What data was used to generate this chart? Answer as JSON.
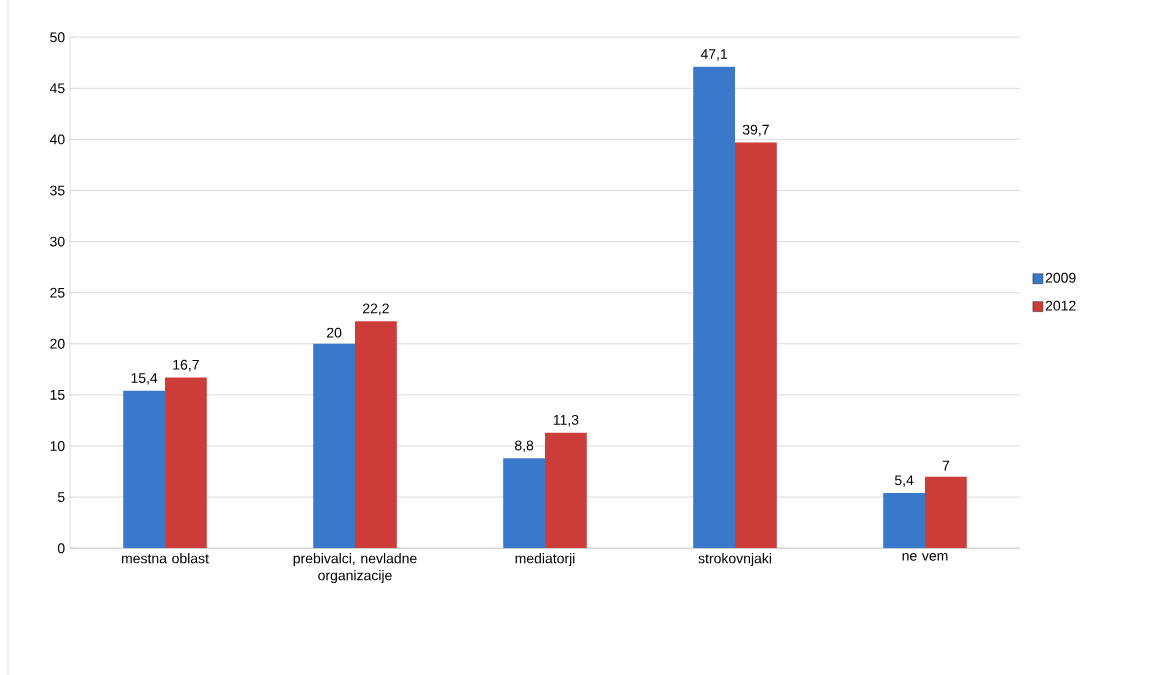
{
  "chart_data": {
    "type": "bar",
    "categories": [
      "mestna oblast",
      "prebivalci, nevladne organizacije",
      "mediatorji",
      "strokovnjaki",
      "ne vem"
    ],
    "series": [
      {
        "name": "2009",
        "color": "#3a78c9",
        "values": [
          15.4,
          20,
          8.8,
          47.1,
          5.4
        ],
        "value_labels": [
          "15,4",
          "20",
          "8,8",
          "47,1",
          "5,4"
        ]
      },
      {
        "name": "2012",
        "color": "#cc3d3a",
        "values": [
          16.7,
          22.2,
          11.3,
          39.7,
          7
        ],
        "value_labels": [
          "16,7",
          "22,2",
          "11,3",
          "39,7",
          "7"
        ]
      }
    ],
    "ylim": [
      0,
      50
    ],
    "yticks": [
      0,
      5,
      10,
      15,
      20,
      25,
      30,
      35,
      40,
      45,
      50
    ],
    "grid": "y",
    "legend": "right"
  }
}
